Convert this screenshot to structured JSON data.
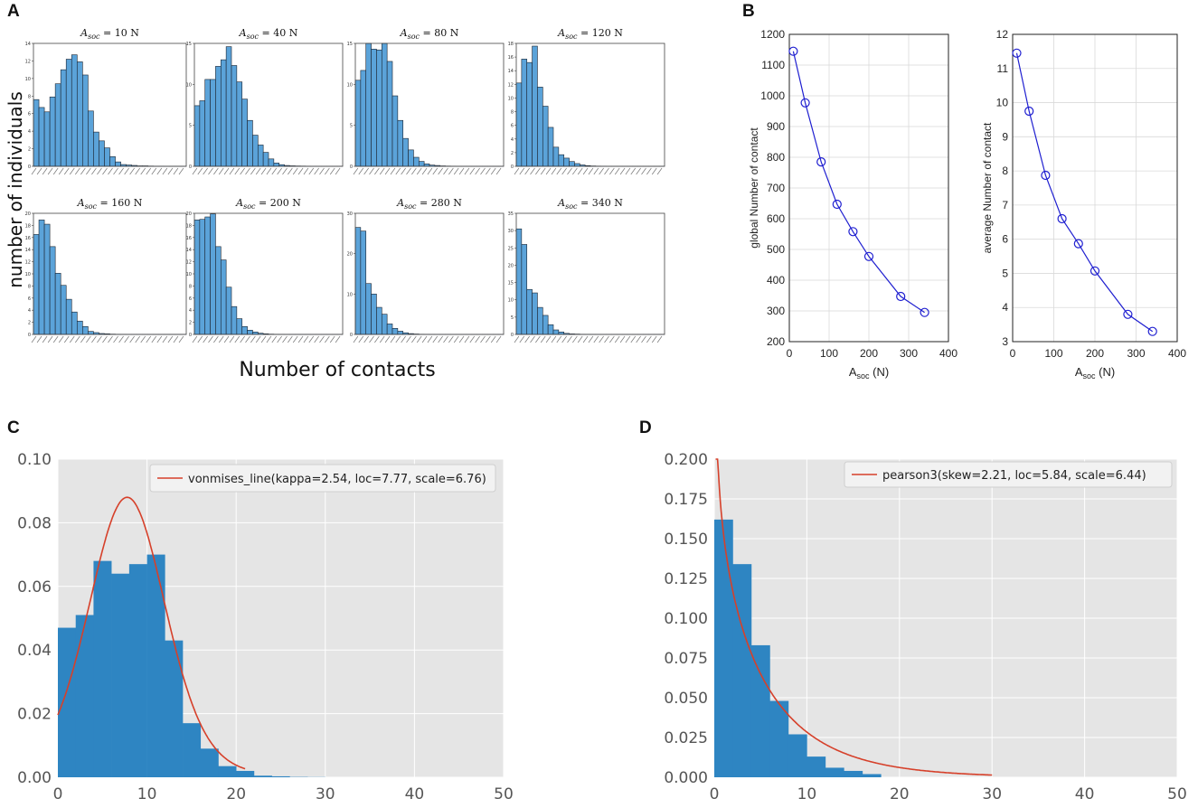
{
  "panels": {
    "a": "A",
    "b": "B",
    "c": "C",
    "d": "D"
  },
  "panel_a": {
    "ylabel": "number of individuals",
    "xlabel": "Number of contacts",
    "subplots": [
      {
        "title": "A_soc = 10 N",
        "title_prefix": "A",
        "title_sub": "soc",
        "title_rest": " = 10 N",
        "ymax": 14,
        "yticks": [
          0,
          2,
          4,
          6,
          8,
          10,
          12,
          14
        ],
        "values": [
          7.6,
          6.7,
          6.2,
          7.9,
          9.4,
          11.0,
          12.2,
          12.7,
          11.9,
          10.4,
          6.3,
          3.9,
          2.9,
          2.1,
          1.1,
          0.5,
          0.2,
          0.15,
          0.1,
          0.05,
          0.05,
          0.03,
          0.02,
          0.02,
          0.01,
          0.01,
          0.01,
          0.01
        ]
      },
      {
        "title": "A_soc = 40 N",
        "title_prefix": "A",
        "title_sub": "soc",
        "title_rest": " = 40 N",
        "ymax": 15,
        "yticks": [
          0,
          5,
          10,
          15
        ],
        "values": [
          7.4,
          8.0,
          10.6,
          10.6,
          12.2,
          13.0,
          14.6,
          12.3,
          10.3,
          8.2,
          5.6,
          3.8,
          2.6,
          1.7,
          0.9,
          0.4,
          0.2,
          0.1,
          0.06,
          0.04,
          0.03,
          0.02,
          0.01,
          0.01,
          0.01,
          0.01,
          0.01,
          0.01
        ]
      },
      {
        "title": "A_soc = 80 N",
        "title_prefix": "A",
        "title_sub": "soc",
        "title_rest": " = 80 N",
        "ymax": 15,
        "yticks": [
          0,
          5,
          10,
          15
        ],
        "values": [
          10.5,
          11.7,
          15.0,
          14.3,
          14.2,
          15.0,
          12.8,
          8.6,
          5.6,
          3.4,
          2.0,
          1.1,
          0.6,
          0.3,
          0.15,
          0.1,
          0.05,
          0.03,
          0.02,
          0.01,
          0.01,
          0.01,
          0.01,
          0.01,
          0.01,
          0.01,
          0.01,
          0.01
        ]
      },
      {
        "title": "A_soc = 120 N",
        "title_prefix": "A",
        "title_sub": "soc",
        "title_rest": " = 120 N",
        "ymax": 18,
        "yticks": [
          0,
          2,
          4,
          6,
          8,
          10,
          12,
          14,
          16,
          18
        ],
        "values": [
          12.2,
          15.7,
          15.2,
          17.6,
          11.6,
          8.8,
          5.7,
          2.8,
          1.7,
          1.2,
          0.7,
          0.4,
          0.2,
          0.1,
          0.05,
          0.03,
          0.02,
          0.01,
          0.01,
          0.01,
          0.01,
          0.01,
          0.01,
          0.01,
          0.01,
          0.01,
          0.01,
          0.01
        ]
      },
      {
        "title": "A_soc = 160 N",
        "title_prefix": "A",
        "title_sub": "soc",
        "title_rest": " = 160 N",
        "ymax": 20,
        "yticks": [
          0,
          2,
          4,
          6,
          8,
          10,
          12,
          14,
          16,
          18,
          20
        ],
        "values": [
          16.5,
          18.9,
          18.2,
          14.5,
          10.1,
          8.1,
          5.8,
          3.7,
          2.2,
          1.3,
          0.5,
          0.3,
          0.15,
          0.1,
          0.05,
          0.03,
          0.02,
          0.01,
          0.01,
          0.01,
          0.01,
          0.01,
          0.01,
          0.01,
          0.01,
          0.01,
          0.01,
          0.01
        ]
      },
      {
        "title": "A_soc = 200 N",
        "title_prefix": "A",
        "title_sub": "soc",
        "title_rest": " = 200 N",
        "ymax": 20,
        "yticks": [
          0,
          2,
          4,
          6,
          8,
          10,
          12,
          14,
          16,
          18,
          20
        ],
        "values": [
          18.9,
          19.0,
          19.4,
          19.9,
          14.5,
          12.3,
          7.8,
          4.6,
          2.6,
          1.3,
          0.7,
          0.4,
          0.2,
          0.1,
          0.05,
          0.03,
          0.02,
          0.01,
          0.01,
          0.01,
          0.01,
          0.01,
          0.01,
          0.01,
          0.01,
          0.01,
          0.01,
          0.01
        ]
      },
      {
        "title": "A_soc = 280 N",
        "title_prefix": "A",
        "title_sub": "soc",
        "title_rest": " = 280 N",
        "ymax": 30,
        "yticks": [
          0,
          10,
          20,
          30
        ],
        "values": [
          26.5,
          25.6,
          12.6,
          10.0,
          6.7,
          5.0,
          2.6,
          1.5,
          0.8,
          0.4,
          0.2,
          0.1,
          0.05,
          0.03,
          0.02,
          0.01,
          0.01,
          0.01,
          0.01,
          0.01,
          0.01,
          0.01,
          0.01,
          0.01,
          0.01,
          0.01,
          0.01,
          0.01
        ]
      },
      {
        "title": "A_soc = 340 N",
        "title_prefix": "A",
        "title_sub": "soc",
        "title_rest": " = 340 N",
        "ymax": 35,
        "yticks": [
          0,
          5,
          10,
          15,
          20,
          25,
          30,
          35
        ],
        "values": [
          30.5,
          26.0,
          13.0,
          12.0,
          7.8,
          5.5,
          2.8,
          1.3,
          0.7,
          0.3,
          0.15,
          0.1,
          0.05,
          0.03,
          0.02,
          0.01,
          0.01,
          0.01,
          0.01,
          0.01,
          0.01,
          0.01,
          0.01,
          0.01,
          0.01,
          0.01,
          0.01,
          0.01
        ]
      }
    ]
  },
  "chart_data": [
    {
      "id": "B-left",
      "type": "line",
      "x": [
        10,
        40,
        80,
        120,
        160,
        200,
        280,
        340
      ],
      "y": [
        1145,
        977,
        785,
        647,
        558,
        477,
        347,
        295
      ],
      "xlim": [
        0,
        400
      ],
      "ylim": [
        200,
        1200
      ],
      "xticks": [
        "0",
        "100",
        "200",
        "300",
        "400"
      ],
      "yticks": [
        "200",
        "300",
        "400",
        "500",
        "600",
        "700",
        "800",
        "900",
        "1000",
        "1100",
        "1200"
      ],
      "ylabel": "global Number of contact",
      "xlabel_main": "A",
      "xlabel_sub": "soc",
      "xlabel_rest": " (N)",
      "color": "#1f1fd0"
    },
    {
      "id": "B-right",
      "type": "line",
      "x": [
        10,
        40,
        80,
        120,
        160,
        200,
        280,
        340
      ],
      "y": [
        11.45,
        9.75,
        7.87,
        6.6,
        5.87,
        5.07,
        3.8,
        3.3
      ],
      "xlim": [
        0,
        400
      ],
      "ylim": [
        3,
        12
      ],
      "xticks": [
        "0",
        "100",
        "200",
        "300",
        "400"
      ],
      "yticks": [
        "3",
        "4",
        "5",
        "6",
        "7",
        "8",
        "9",
        "10",
        "11",
        "12"
      ],
      "ylabel": "average Number of contact",
      "xlabel_main": "A",
      "xlabel_sub": "soc",
      "xlabel_rest": " (N)",
      "color": "#1f1fd0"
    },
    {
      "id": "C",
      "type": "bar",
      "bin_width": 2,
      "bin_start": 0,
      "values": [
        0.047,
        0.051,
        0.068,
        0.064,
        0.067,
        0.07,
        0.043,
        0.017,
        0.009,
        0.0035,
        0.002,
        0.0005,
        0.0003,
        0.0001,
        5e-05
      ],
      "xlim": [
        0,
        50
      ],
      "ylim": [
        0,
        0.1
      ],
      "xticks": [
        "0",
        "10",
        "20",
        "30",
        "40",
        "50"
      ],
      "yticks": [
        "0.00",
        "0.02",
        "0.04",
        "0.06",
        "0.08",
        "0.10"
      ],
      "fit": {
        "label": "vonmises_line(kappa=2.54, loc=7.77, scale=6.76)",
        "kind": "vonmises",
        "kappa": 2.54,
        "loc": 7.77,
        "scale": 6.76,
        "xmin": 0,
        "xmax": 21
      },
      "bar_color": "#2e85c2",
      "fit_color": "#d6402a"
    },
    {
      "id": "D",
      "type": "bar",
      "bin_width": 2,
      "bin_start": 0,
      "values": [
        0.162,
        0.134,
        0.083,
        0.048,
        0.027,
        0.013,
        0.006,
        0.004,
        0.002
      ],
      "xlim": [
        0,
        50
      ],
      "ylim": [
        0,
        0.2
      ],
      "xticks": [
        "0",
        "10",
        "20",
        "30",
        "40",
        "50"
      ],
      "yticks": [
        "0.000",
        "0.025",
        "0.050",
        "0.075",
        "0.100",
        "0.125",
        "0.150",
        "0.175",
        "0.200"
      ],
      "fit": {
        "label": "pearson3(skew=2.21, loc=5.84, scale=6.44)",
        "kind": "pearson3",
        "skew": 2.21,
        "loc": 5.84,
        "scale": 6.44,
        "xmin": 0.15,
        "xmax": 30
      },
      "bar_color": "#2e85c2",
      "fit_color": "#d6402a"
    }
  ]
}
